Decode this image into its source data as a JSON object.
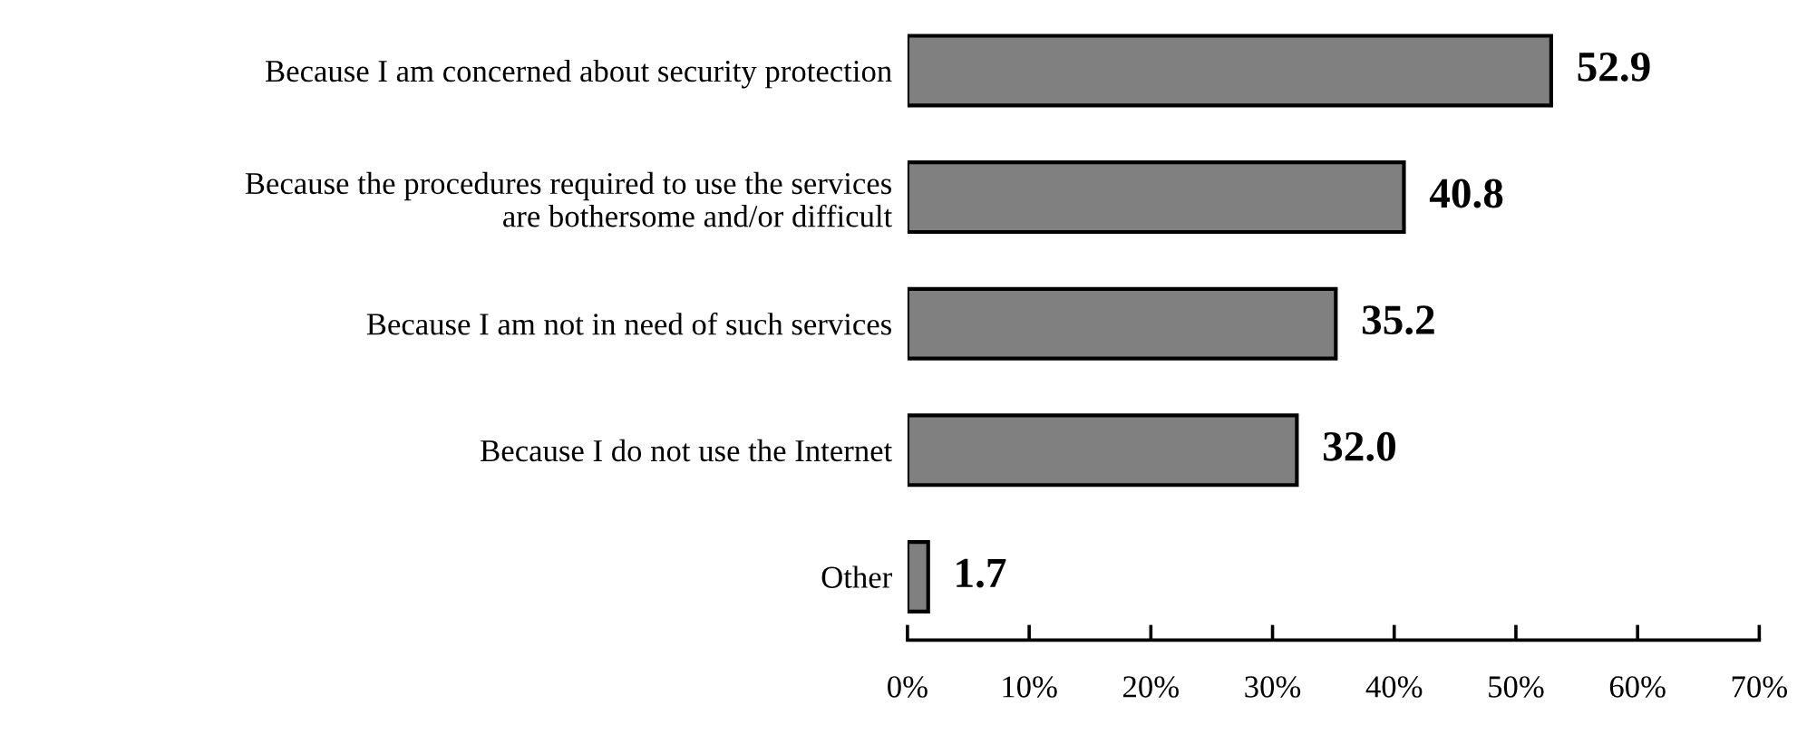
{
  "chart_data": {
    "type": "bar",
    "orientation": "horizontal",
    "categories": [
      "Because I am concerned about security protection",
      "Because the procedures required to use the services\nare bothersome and/or difficult",
      "Because I am not in need of such services",
      "Because I do not use the Internet",
      "Other"
    ],
    "values": [
      52.9,
      40.8,
      35.2,
      32.0,
      1.7
    ],
    "value_labels": [
      "52.9",
      "40.8",
      "35.2",
      "32.0",
      "1.7"
    ],
    "color": "#808080",
    "xlim": [
      0,
      70
    ],
    "xticks": [
      {
        "value": 0,
        "label": "0%"
      },
      {
        "value": 10,
        "label": "10%"
      },
      {
        "value": 20,
        "label": "20%"
      },
      {
        "value": 30,
        "label": "30%"
      },
      {
        "value": 40,
        "label": "40%"
      },
      {
        "value": 50,
        "label": "50%"
      },
      {
        "value": 60,
        "label": "60%"
      },
      {
        "value": 70,
        "label": "70%"
      }
    ],
    "grid": false,
    "legend": false
  }
}
